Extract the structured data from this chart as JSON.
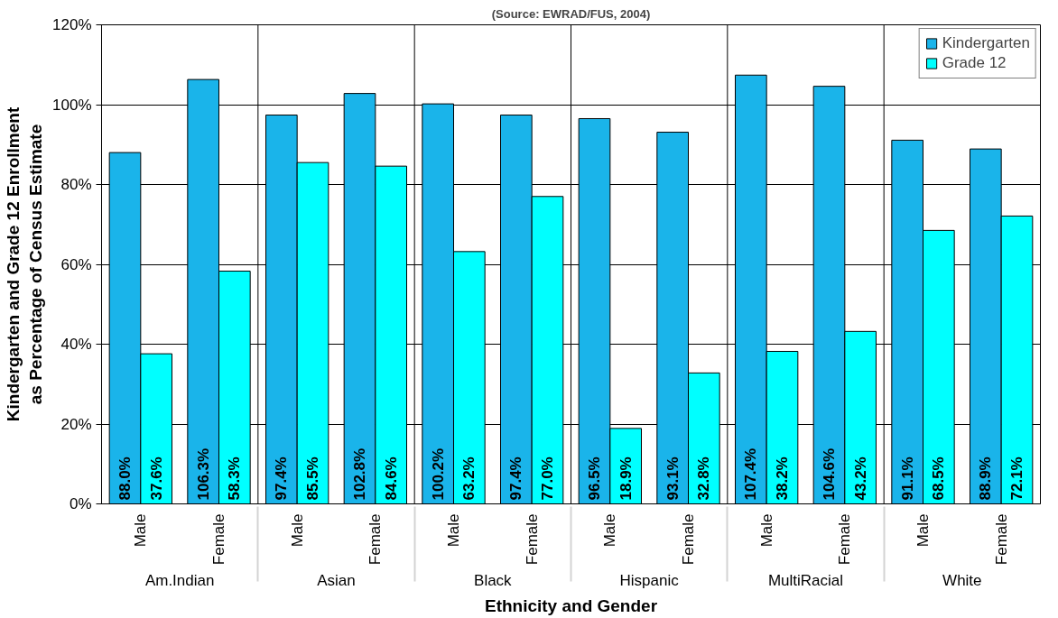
{
  "chart_data": {
    "type": "bar",
    "subtitle": "(Source: EWRAD/FUS, 2004)",
    "xlabel": "Ethnicity and Gender",
    "ylabel": "Kindergarten and Grade 12 Enrollment\nas Percentage of Census Estimate",
    "categories": [
      "Male",
      "Female",
      "Male",
      "Female",
      "Male",
      "Female",
      "Male",
      "Female",
      "Male",
      "Female",
      "Male",
      "Female"
    ],
    "annotations": [
      "Am.Indian",
      "Asian",
      "Black",
      "Hispanic",
      "MultiRacial",
      "White"
    ],
    "series": [
      {
        "name": "Kindergarten",
        "color": "#1ab4ea",
        "values": [
          88.0,
          106.3,
          97.4,
          102.8,
          100.2,
          97.4,
          96.5,
          93.1,
          107.4,
          104.6,
          91.1,
          88.9
        ],
        "value_labels": [
          "88.0%",
          "106.3%",
          "97.4%",
          "102.8%",
          "100.2%",
          "97.4%",
          "96.5%",
          "93.1%",
          "107.4%",
          "104.6%",
          "91.1%",
          "88.9%"
        ]
      },
      {
        "name": "Grade 12",
        "color": "#00ffff",
        "values": [
          37.6,
          58.3,
          85.5,
          84.6,
          63.2,
          77.0,
          18.9,
          32.8,
          38.2,
          43.2,
          68.5,
          72.1
        ],
        "value_labels": [
          "37.6%",
          "58.3%",
          "85.5%",
          "84.6%",
          "63.2%",
          "77.0%",
          "18.9%",
          "32.8%",
          "38.2%",
          "43.2%",
          "68.5%",
          "72.1%"
        ]
      }
    ],
    "ylim": [
      0,
      120
    ],
    "yticks": [
      {
        "value": 0,
        "label": "0%"
      },
      {
        "value": 20,
        "label": "20%"
      },
      {
        "value": 40,
        "label": "40%"
      },
      {
        "value": 60,
        "label": "60%"
      },
      {
        "value": 80,
        "label": "80%"
      },
      {
        "value": 100,
        "label": "100%"
      },
      {
        "value": 120,
        "label": "120%"
      }
    ],
    "grid": "y",
    "legend": "top right"
  }
}
